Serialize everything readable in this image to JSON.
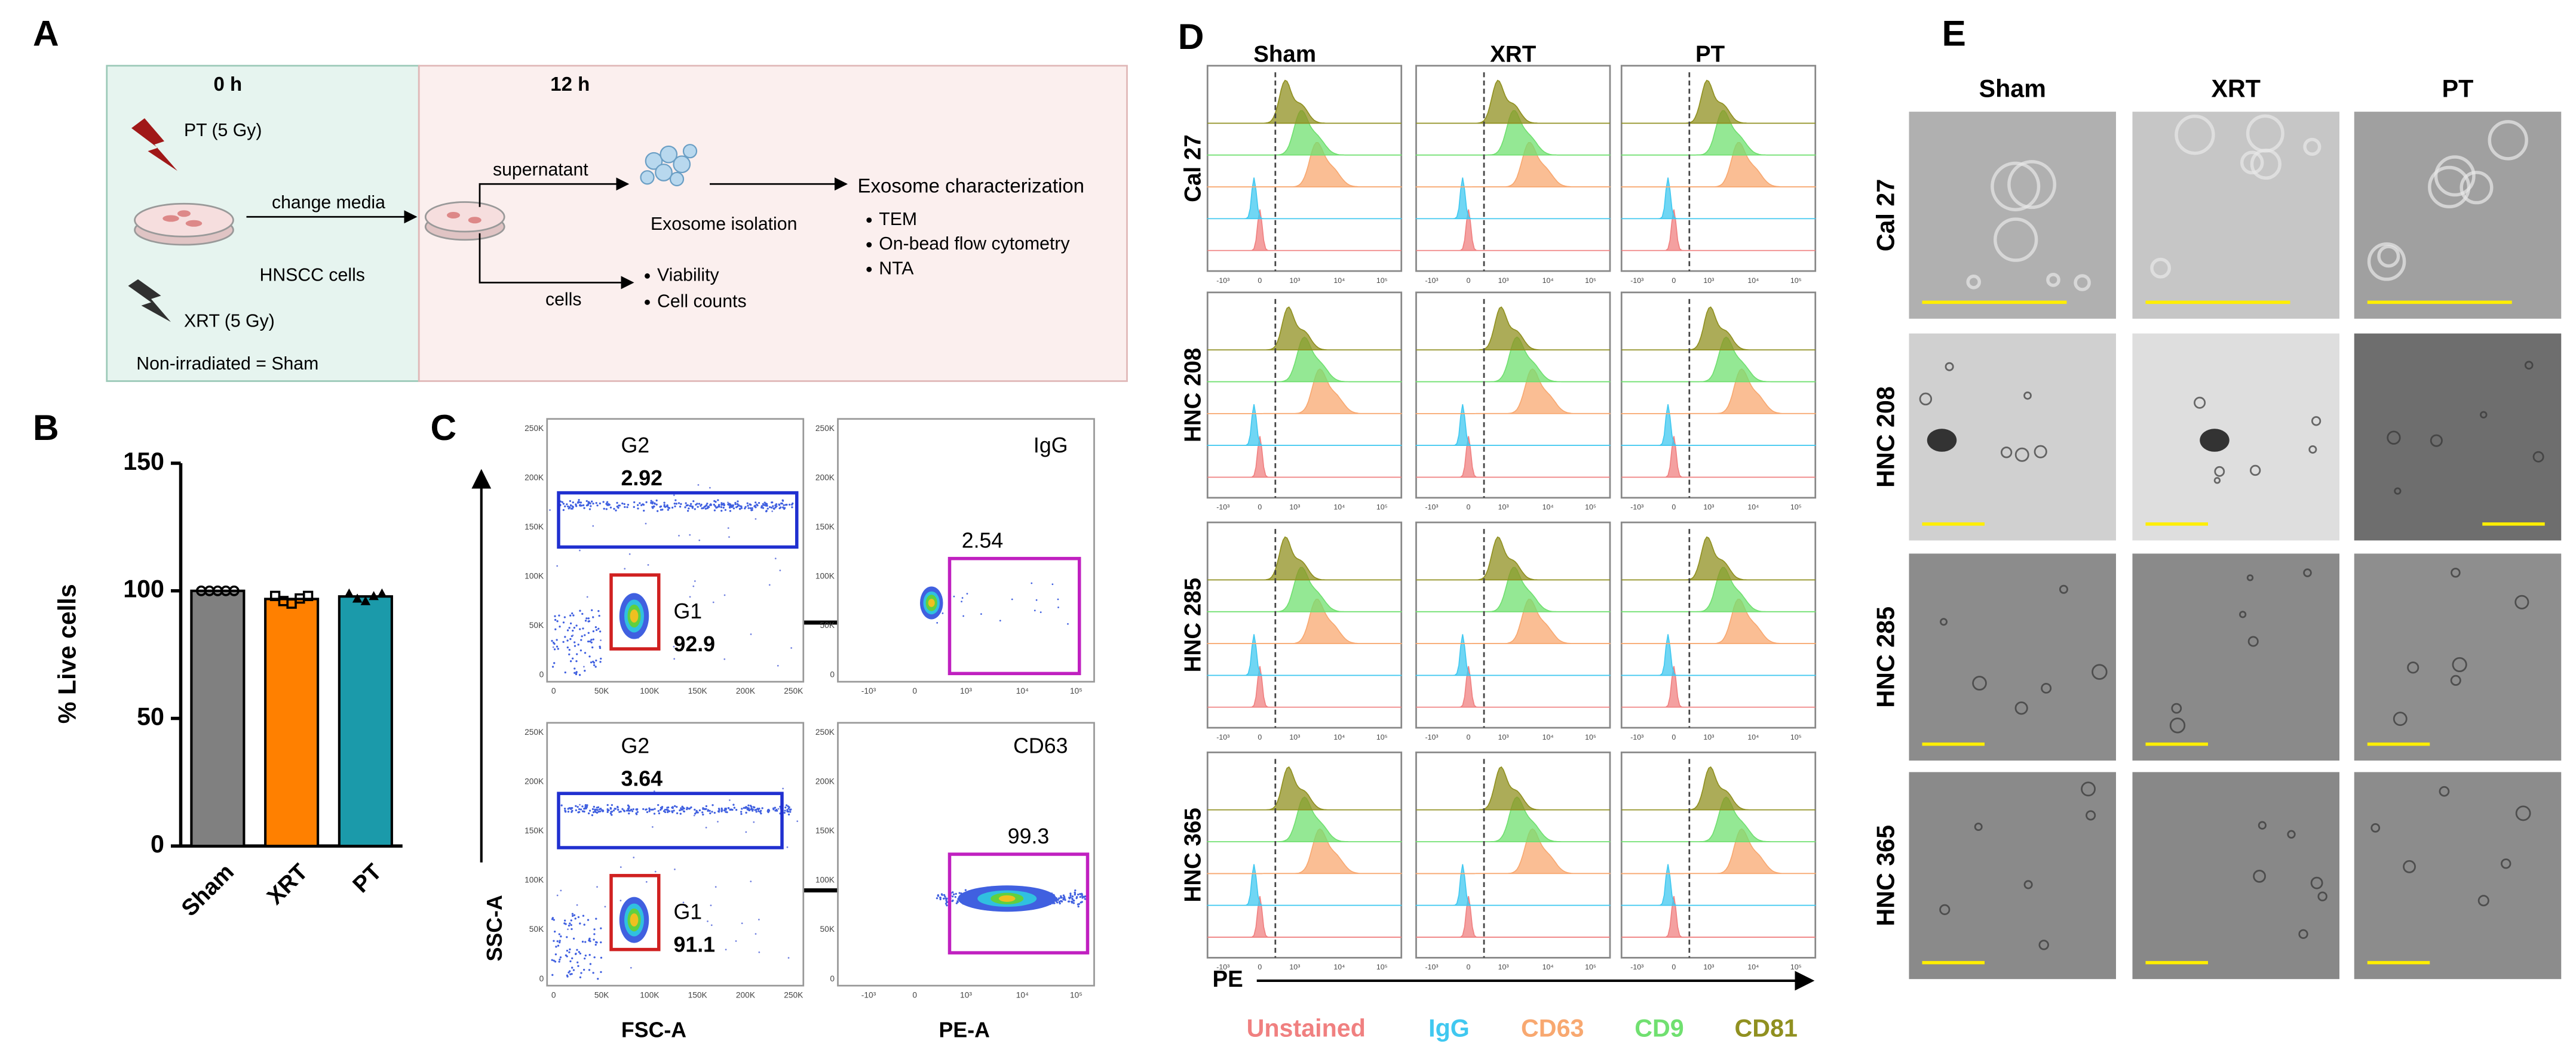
{
  "panel_labels": [
    "A",
    "B",
    "C",
    "D",
    "E"
  ],
  "schematic": {
    "time_0": "0 h",
    "time_12": "12 h",
    "pt": "PT (5 Gy)",
    "xrt": "XRT (5 Gy)",
    "change_media": "change media",
    "hnscc": "HNSCC cells",
    "sham_note": "Non-irradiated = Sham",
    "supernatant": "supernatant",
    "exosome_isolation": "Exosome isolation",
    "cells": "cells",
    "cell_items": [
      "Viability",
      "Cell counts"
    ],
    "characterization": "Exosome characterization",
    "characterization_items": [
      "TEM",
      "On-bead flow cytometry",
      "NTA"
    ]
  },
  "chart_data": {
    "type": "bar",
    "ylabel": "% Live cells",
    "categories": [
      "Sham",
      "XRT",
      "PT"
    ],
    "values": [
      100,
      96.8,
      97.8
    ],
    "colors": [
      "#808080",
      "#ff8000",
      "#1b9aaa"
    ],
    "replicates": [
      [
        100,
        100,
        100,
        100,
        100
      ],
      [
        98,
        96,
        95,
        97,
        98
      ],
      [
        99,
        97,
        96,
        98,
        99
      ]
    ],
    "ylim": [
      0,
      150
    ],
    "yticks": [
      0,
      50,
      100,
      150
    ]
  },
  "flow": {
    "xlabel": "FSC-A",
    "ylabel": "SSC-A",
    "xlabel_pe": "PE-A",
    "scatter_ticks": [
      "0",
      "50K",
      "100K",
      "150K",
      "200K",
      "250K"
    ],
    "pe_ticks": [
      "-10³",
      "0",
      "10³",
      "10⁴",
      "10⁵"
    ],
    "rows": [
      {
        "g2": "G2",
        "g2_value": 2.92,
        "g1": "G1",
        "g1_value": 92.9,
        "stain": "IgG",
        "gate_value": 2.54
      },
      {
        "g2": "G2",
        "g2_value": 3.64,
        "g1": "G1",
        "g1_value": 91.1,
        "stain": "CD63",
        "gate_value": 99.3
      }
    ]
  },
  "histograms": {
    "columns": [
      "Sham",
      "XRT",
      "PT"
    ],
    "rows": [
      "Cal 27",
      "HNC 208",
      "HNC 285",
      "HNC 365"
    ],
    "ticks": [
      "-10³",
      "0",
      "10³",
      "10⁴",
      "10⁵"
    ],
    "xlabel": "PE",
    "legend": [
      {
        "name": "Unstained",
        "color": "#f08080"
      },
      {
        "name": "IgG",
        "color": "#40c8f0"
      },
      {
        "name": "CD63",
        "color": "#f8a870"
      },
      {
        "name": "CD9",
        "color": "#70e070"
      },
      {
        "name": "CD81",
        "color": "#909020"
      }
    ]
  },
  "tem": {
    "columns": [
      "Sham",
      "XRT",
      "PT"
    ],
    "rows": [
      "Cal 27",
      "HNC 208",
      "HNC 285",
      "HNC 365"
    ]
  }
}
